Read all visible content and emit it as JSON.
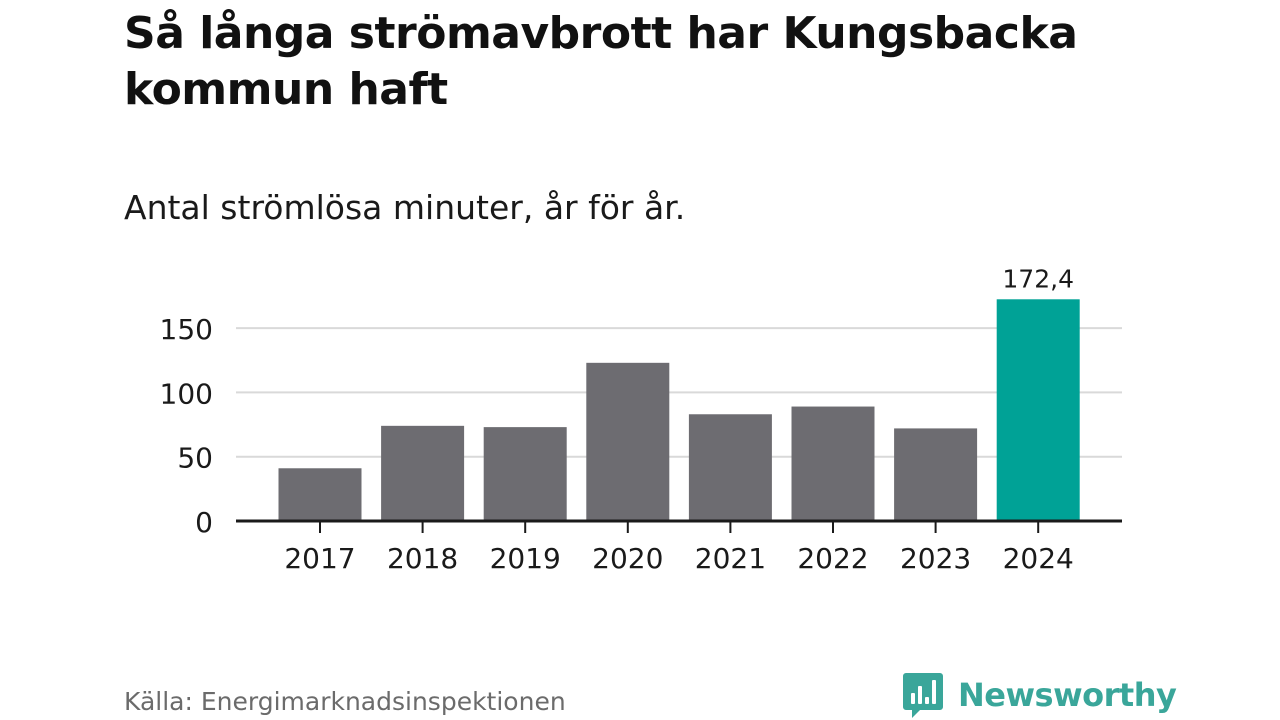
{
  "title": "Så långa strömavbrott har Kungsbacka kommun haft",
  "subtitle": "Antal strömlösa minuter, år för år.",
  "source": "Källa: Energimarknadsinspektionen",
  "brand": {
    "name": "Newsworthy",
    "icon": "newsworthy-logo-icon",
    "color": "#3aa69a"
  },
  "colors": {
    "bar": "#6d6c71",
    "highlight": "#00a296",
    "grid": "#d9d9d9",
    "axis": "#1a1a1a",
    "text": "#1a1a1a"
  },
  "chart_data": {
    "type": "bar",
    "title": "Så långa strömavbrott har Kungsbacka kommun haft",
    "subtitle": "Antal strömlösa minuter, år för år.",
    "xlabel": "",
    "ylabel": "",
    "categories": [
      "2017",
      "2018",
      "2019",
      "2020",
      "2021",
      "2022",
      "2023",
      "2024"
    ],
    "values": [
      41,
      74,
      73,
      123,
      83,
      89,
      72,
      172.4
    ],
    "highlight_index": 7,
    "annotations": [
      {
        "category": "2024",
        "label": "172,4"
      }
    ],
    "yticks": [
      0,
      50,
      100,
      150
    ],
    "ylim": [
      0,
      175
    ],
    "grid": true,
    "legend": "none"
  }
}
